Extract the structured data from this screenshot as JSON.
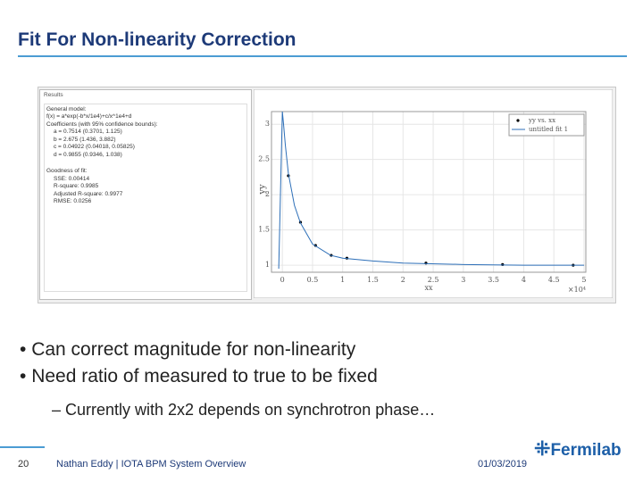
{
  "header": {
    "title": "Fit For Non-linearity Correction"
  },
  "results": {
    "heading": "Results",
    "lines": [
      "General model:",
      "f(x) = a*exp(-b*x/1e4)+c/x^1e4+d",
      "Coefficients (with 95% confidence bounds):",
      "a = 0.7514 (0.3701, 1.125)",
      "b = 2.675 (1.436, 3.882)",
      "c = 0.04922 (0.04018, 0.05825)",
      "d = 0.9855 (0.9346, 1.038)",
      "Goodness of fit:",
      "SSE: 0.00414",
      "R-square: 0.9985",
      "Adjusted R-square: 0.9977",
      "RMSE: 0.0256"
    ]
  },
  "chart_data": {
    "type": "scatter",
    "x_label": "xx",
    "y_label": "yy",
    "x_multiplier": "×10⁴",
    "xlim": [
      -0.18,
      5.03
    ],
    "ylim": [
      0.9,
      3.18
    ],
    "xticks": [
      0,
      0.5,
      1,
      1.5,
      2,
      2.5,
      3,
      3.5,
      4,
      4.5,
      5
    ],
    "yticks": [
      1,
      1.5,
      2,
      2.5,
      3
    ],
    "grid": true,
    "series": [
      {
        "name": "yy vs. xx",
        "color": "#000000",
        "x": [
          0.1,
          0.3,
          0.55,
          0.81,
          1.07,
          2.38,
          3.65,
          4.82
        ],
        "values": [
          2.27,
          1.61,
          1.28,
          1.14,
          1.1,
          1.03,
          1.01,
          1.0
        ]
      },
      {
        "name": "untitled fit 1",
        "color": "#2d6fb8",
        "x": [
          -0.06,
          0.0,
          0.02,
          0.05,
          0.1,
          0.2,
          0.3,
          0.5,
          0.8,
          1.0,
          1.5,
          2,
          3,
          4,
          5
        ],
        "values": [
          0.95,
          3.18,
          3.0,
          2.7,
          2.3,
          1.85,
          1.6,
          1.3,
          1.14,
          1.1,
          1.06,
          1.03,
          1.01,
          1.0,
          1.0
        ]
      }
    ]
  },
  "bullets": [
    "Can correct magnitude for non-linearity",
    "Need ratio of measured to true to be fixed"
  ],
  "sub_bullets": [
    "Currently with 2x2 depends on synchrotron phase…"
  ],
  "footer": {
    "page": "20",
    "presenter": "Nathan Eddy | IOTA BPM System Overview",
    "date": "01/03/2019",
    "logo": "Fermilab"
  }
}
